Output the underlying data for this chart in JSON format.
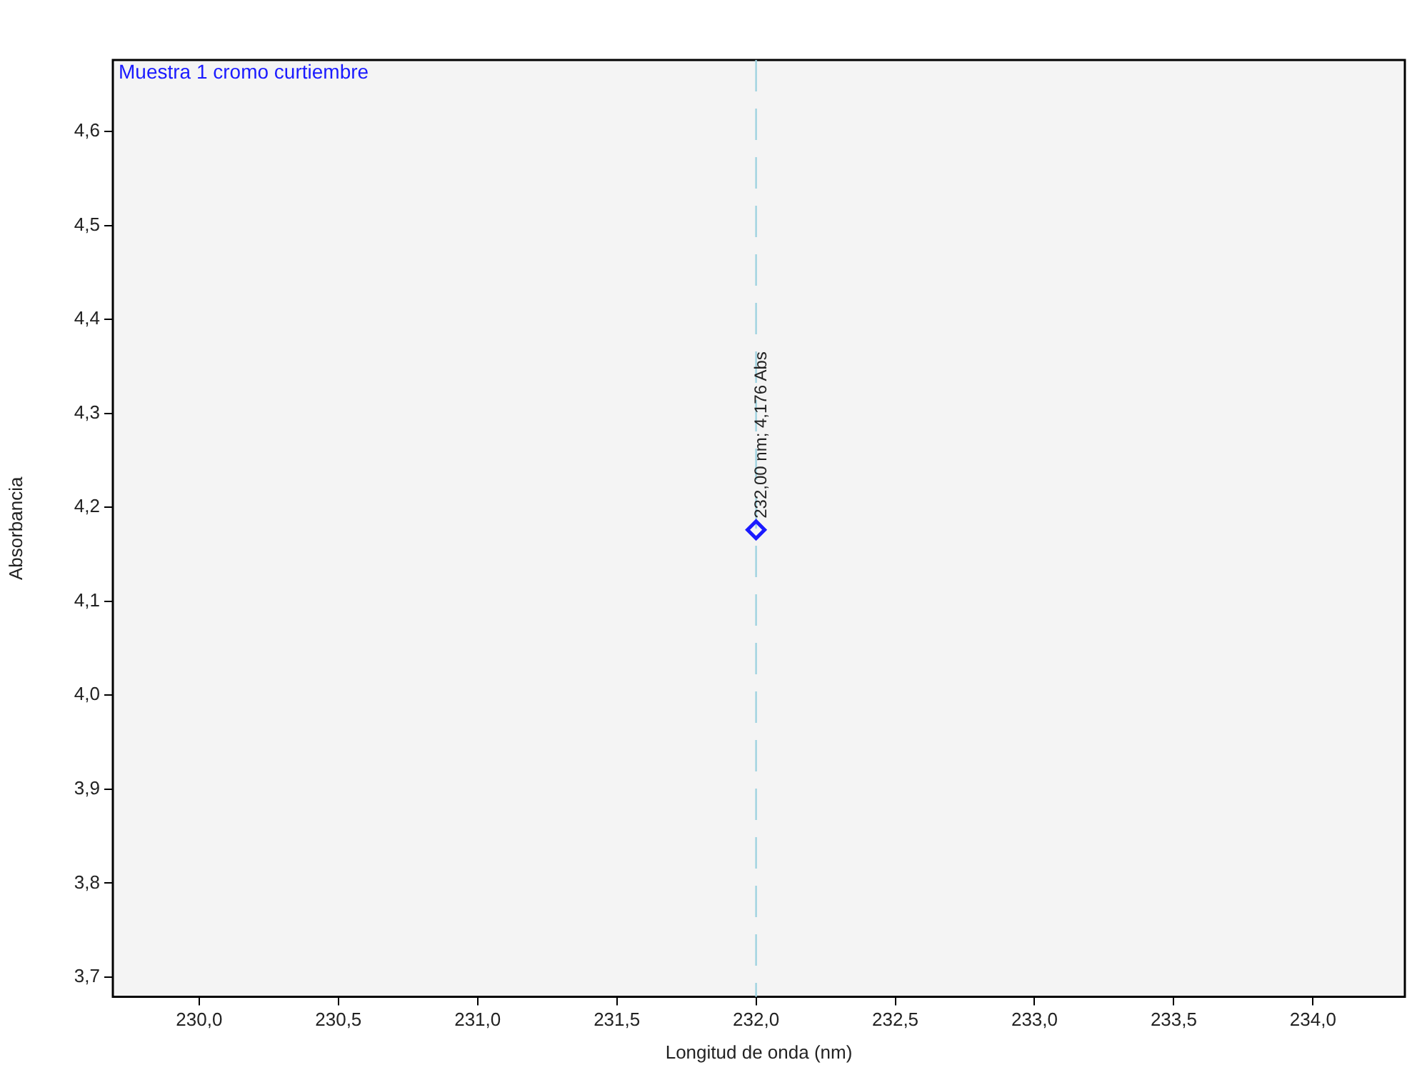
{
  "chart_data": {
    "type": "scatter",
    "xlabel": "Longitud de onda (nm)",
    "ylabel": "Absorbancia",
    "x": [
      232.0
    ],
    "series": [
      {
        "name": "Muestra 1 cromo curtiembre",
        "color": "#1a1aff",
        "values": [
          4.176
        ]
      }
    ],
    "marker": "diamond",
    "legend": "top left",
    "xlim": [
      229.69,
      234.33
    ],
    "xticks": [
      {
        "value": 230,
        "label": "230,0"
      },
      {
        "value": 230.5,
        "label": "230,5"
      },
      {
        "value": 231,
        "label": "231,0"
      },
      {
        "value": 231.5,
        "label": "231,5"
      },
      {
        "value": 232,
        "label": "232,0"
      },
      {
        "value": 232.5,
        "label": "232,5"
      },
      {
        "value": 233,
        "label": "233,0"
      },
      {
        "value": 233.5,
        "label": "233,5"
      },
      {
        "value": 234,
        "label": "234,0"
      }
    ],
    "ylim": [
      3.679,
      4.676
    ],
    "yticks": [
      {
        "value": 3.7,
        "label": "3,7"
      },
      {
        "value": 3.8,
        "label": "3,8"
      },
      {
        "value": 3.9,
        "label": "3,9"
      },
      {
        "value": 4.0,
        "label": "4,0"
      },
      {
        "value": 4.1,
        "label": "4,1"
      },
      {
        "value": 4.2,
        "label": "4,2"
      },
      {
        "value": 4.3,
        "label": "4,3"
      },
      {
        "value": 4.4,
        "label": "4,4"
      },
      {
        "value": 4.5,
        "label": "4,5"
      },
      {
        "value": 4.6,
        "label": "4,6"
      }
    ],
    "ref_lines": [
      {
        "axis": "x",
        "value": 232.0,
        "color": "#9fd3e0",
        "line_style": "dashed"
      }
    ],
    "annotations": [
      {
        "text": "232,00 nm; 4,176 Abs",
        "x": 232.0,
        "y": 4.176
      }
    ]
  }
}
